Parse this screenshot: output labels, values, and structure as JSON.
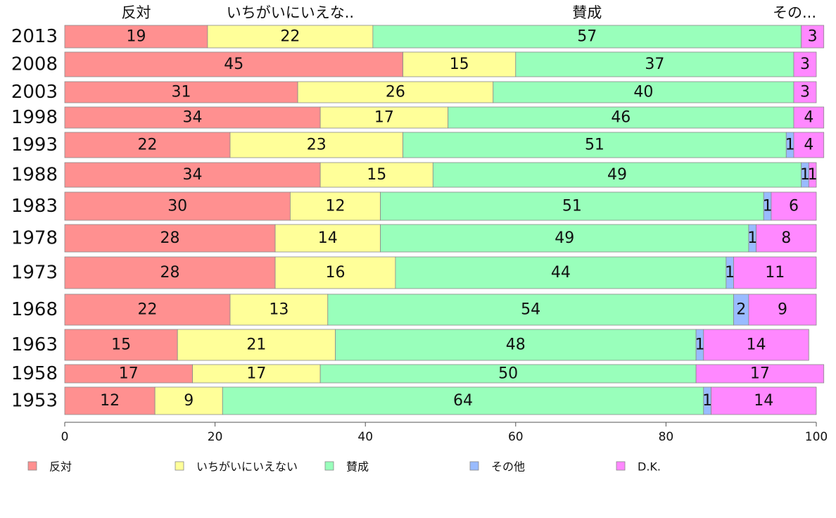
{
  "chart_data": {
    "type": "bar",
    "orientation": "horizontal",
    "stacked": true,
    "xlim": [
      0,
      100
    ],
    "x_ticks": [
      0,
      20,
      40,
      60,
      80,
      100
    ],
    "categories": [
      "2013",
      "2008",
      "2003",
      "1998",
      "1993",
      "1988",
      "1983",
      "1978",
      "1973",
      "1968",
      "1963",
      "1958",
      "1953"
    ],
    "series": [
      {
        "name": "反対",
        "color": "#ff9090",
        "values": [
          19,
          45,
          31,
          34,
          22,
          34,
          30,
          28,
          28,
          22,
          15,
          17,
          12
        ]
      },
      {
        "name": "いちがいにいえない",
        "color": "#ffff99",
        "values": [
          22,
          15,
          26,
          17,
          23,
          15,
          12,
          14,
          16,
          13,
          21,
          17,
          9
        ]
      },
      {
        "name": "賛成",
        "color": "#99ffbb",
        "values": [
          57,
          37,
          40,
          46,
          51,
          49,
          51,
          49,
          44,
          54,
          48,
          50,
          64
        ]
      },
      {
        "name": "その他",
        "color": "#99bbff",
        "values": [
          0,
          0,
          0,
          0,
          1,
          1,
          1,
          1,
          1,
          2,
          1,
          0,
          1
        ]
      },
      {
        "name": "D.K.",
        "color": "#ff88ff",
        "values": [
          3,
          3,
          3,
          4,
          4,
          1,
          6,
          8,
          11,
          9,
          14,
          17,
          14
        ]
      }
    ],
    "top_labels": [
      "反対",
      "いちがいにいえな..",
      "賛成",
      "その..."
    ],
    "legend_position": "bottom",
    "grid": false
  }
}
